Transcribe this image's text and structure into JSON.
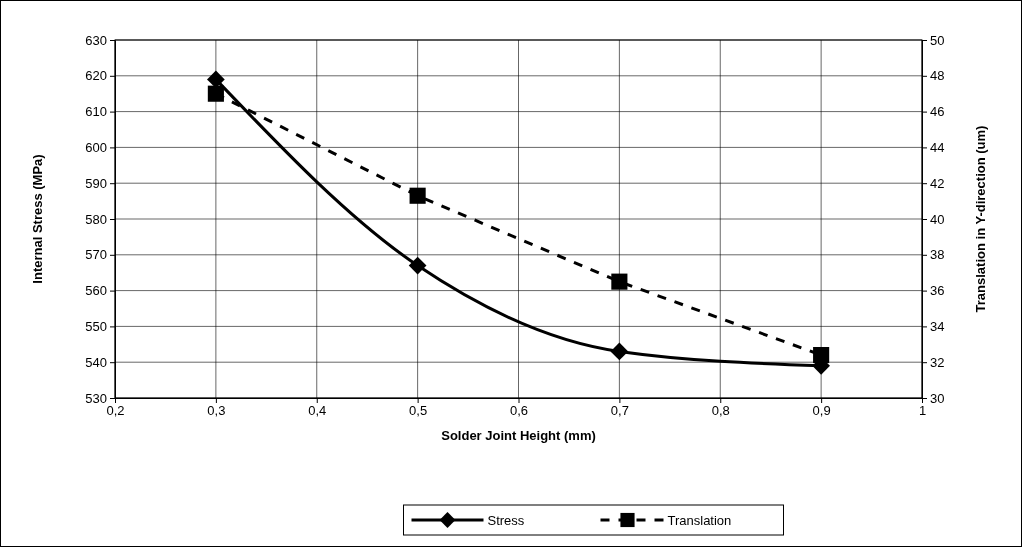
{
  "chart_data": {
    "type": "line",
    "xlabel": "Solder Joint Height (mm)",
    "ylabel": "Internal Stress (MPa)",
    "y2label": "Translation in Y-direction (um)",
    "x": [
      0.3,
      0.5,
      0.7,
      0.9
    ],
    "series": [
      {
        "name": "Stress",
        "color": "#000000",
        "values": [
          619,
          567,
          543,
          539
        ],
        "marker": "diamond",
        "line_style": "solid"
      },
      {
        "name": "Translation",
        "color": "#000000",
        "values": [
          47.0,
          41.3,
          36.5,
          32.4
        ],
        "marker": "square",
        "line_style": "dashed",
        "axis": "y2"
      }
    ],
    "xlim": [
      0.2,
      1
    ],
    "xticks": [
      {
        "value": 0.2,
        "label": "0,2"
      },
      {
        "value": 0.3,
        "label": "0,3"
      },
      {
        "value": 0.4,
        "label": "0,4"
      },
      {
        "value": 0.5,
        "label": "0,5"
      },
      {
        "value": 0.6,
        "label": "0,6"
      },
      {
        "value": 0.7,
        "label": "0,7"
      },
      {
        "value": 0.8,
        "label": "0,8"
      },
      {
        "value": 0.9,
        "label": "0,9"
      },
      1
    ],
    "ylim": [
      530,
      630
    ],
    "yticks": [
      530,
      540,
      550,
      560,
      570,
      580,
      590,
      600,
      610,
      620,
      630
    ],
    "y2lim": [
      30,
      50
    ],
    "y2ticks": [
      30,
      32,
      34,
      36,
      38,
      40,
      42,
      44,
      46,
      48,
      50
    ],
    "grid": true,
    "legend": "bottom"
  }
}
